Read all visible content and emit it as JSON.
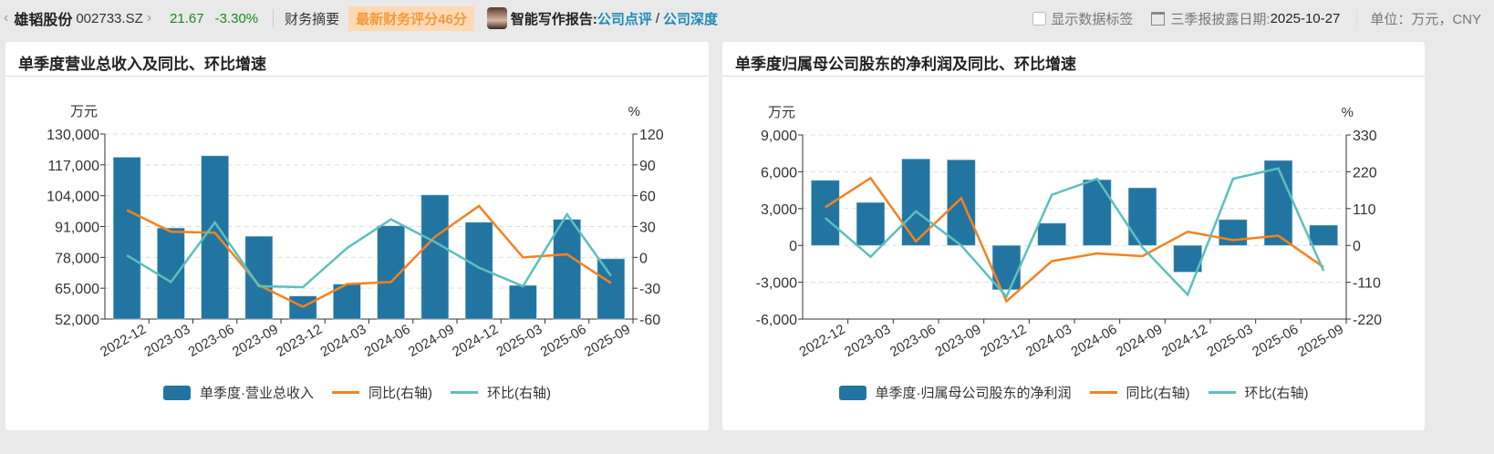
{
  "header": {
    "stock_name": "雄韬股份",
    "stock_code": "002733.SZ",
    "price": "21.67",
    "change_pct": "-3.30%",
    "summary_tab": "财务摘要",
    "score_badge": "最新财务评分46分",
    "ai_report_label": "智能写作报告:",
    "link_review": "公司点评",
    "link_depth": "公司深度",
    "show_labels": "显示数据标签",
    "disclosure_label": "三季报披露日期:",
    "disclosure_date": "2025-10-27",
    "unit": "单位：万元，CNY"
  },
  "colors": {
    "bar": "#2375a1",
    "yoy": "#f5821f",
    "qoq": "#5bc0be",
    "up_down": "#1a8a1a",
    "link": "#1f8bb4"
  },
  "chart_data": [
    {
      "type": "bar+line",
      "title": "单季度营业总收入及同比、环比增速",
      "left_unit": "万元",
      "right_unit": "%",
      "categories": [
        "2022-12",
        "2023-03",
        "2023-06",
        "2023-09",
        "2023-12",
        "2024-03",
        "2024-06",
        "2024-09",
        "2024-12",
        "2025-03",
        "2025-06",
        "2025-09"
      ],
      "left_ticks": [
        "130,000",
        "117,000",
        "104,000",
        "91,000",
        "78,000",
        "65,000",
        "52,000"
      ],
      "left_range": [
        52000,
        130000
      ],
      "right_ticks": [
        "120",
        "90",
        "60",
        "30",
        "0",
        "-30",
        "-60"
      ],
      "right_range": [
        -60,
        120
      ],
      "series": [
        {
          "name": "单季度·营业总收入",
          "axis": "left",
          "kind": "bar",
          "values": [
            120200,
            90400,
            120800,
            86900,
            61700,
            66700,
            91300,
            104300,
            92800,
            66200,
            94000,
            77400
          ]
        },
        {
          "name": "同比(右轴)",
          "axis": "right",
          "kind": "line",
          "values": [
            46,
            25,
            24,
            -27,
            -48,
            -26,
            -24,
            20,
            50,
            0,
            3,
            -25
          ]
        },
        {
          "name": "环比(右轴)",
          "axis": "right",
          "kind": "line",
          "values": [
            2,
            -24,
            34,
            -28,
            -29,
            9,
            37,
            15,
            -10,
            -28,
            42,
            -18
          ]
        }
      ],
      "grid": true,
      "legend": "bottom"
    },
    {
      "type": "bar+line",
      "title": "单季度归属母公司股东的净利润及同比、环比增速",
      "left_unit": "万元",
      "right_unit": "%",
      "categories": [
        "2022-12",
        "2023-03",
        "2023-06",
        "2023-09",
        "2023-12",
        "2024-03",
        "2024-06",
        "2024-09",
        "2024-12",
        "2025-03",
        "2025-06",
        "2025-09"
      ],
      "left_ticks": [
        "9,000",
        "6,000",
        "3,000",
        "0",
        "-3,000",
        "-6,000"
      ],
      "left_range": [
        -6000,
        9000
      ],
      "right_ticks": [
        "330",
        "220",
        "110",
        "0",
        "-110",
        "-220"
      ],
      "right_range": [
        -220,
        330
      ],
      "series": [
        {
          "name": "单季度·归属母公司股东的净利润",
          "axis": "left",
          "kind": "bar",
          "values": [
            5300,
            3500,
            7040,
            6970,
            -3600,
            1810,
            5350,
            4690,
            -2170,
            2100,
            6920,
            1650
          ]
        },
        {
          "name": "同比(右轴)",
          "axis": "right",
          "kind": "line",
          "values": [
            114,
            201,
            12,
            141,
            -167,
            -47,
            -24,
            -32,
            41,
            16,
            29,
            -65
          ]
        },
        {
          "name": "环比(右轴)",
          "axis": "right",
          "kind": "line",
          "values": [
            82,
            -34,
            102,
            0,
            -153,
            151,
            199,
            -6,
            -147,
            199,
            230,
            -76
          ]
        }
      ],
      "grid": true,
      "legend": "bottom"
    }
  ]
}
